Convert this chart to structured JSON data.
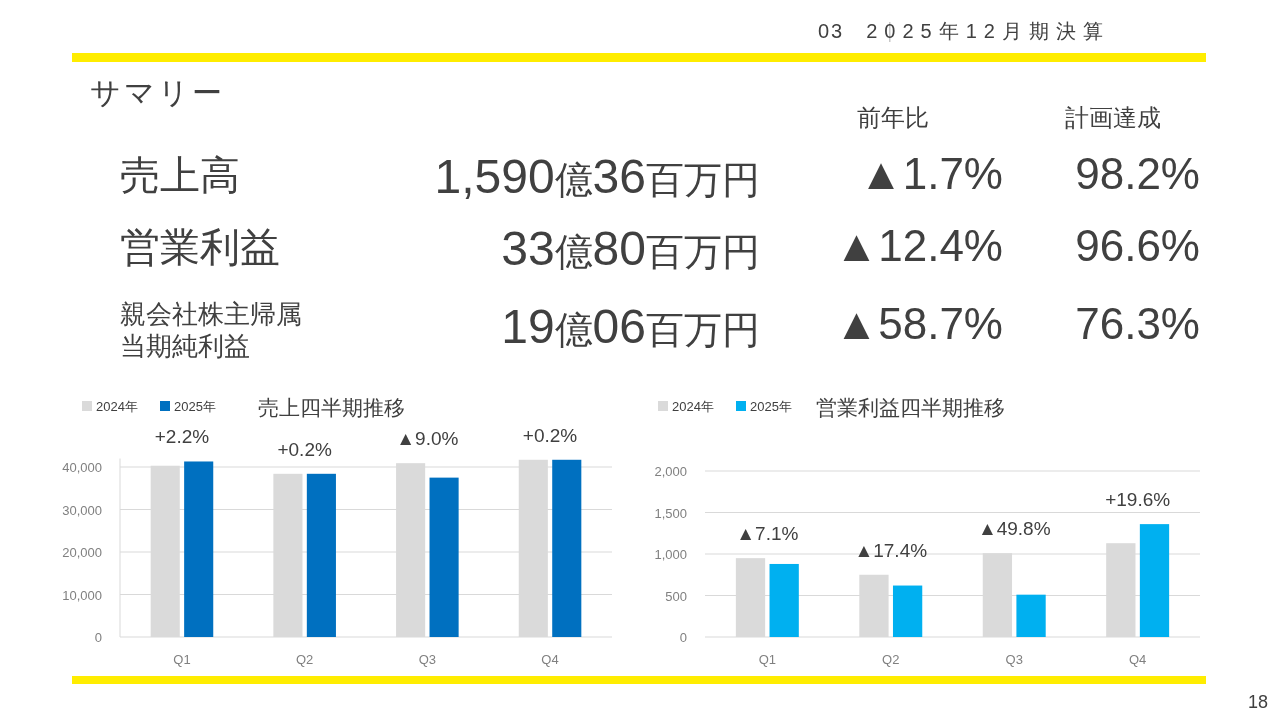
{
  "chart_data": [
    {
      "type": "other",
      "title": "サマリー",
      "annotations": [
        "03",
        "2025年12月期決算",
        "前年比",
        "計画達成",
        "売上高",
        "1,590億36百万円",
        "▲1.7%",
        "98.2%",
        "営業利益",
        "33億80百万円",
        "▲12.4%",
        "96.6%",
        "親会社株主帰属当期純利益",
        "19億06百万円",
        "▲58.7%",
        "76.3%",
        "18"
      ]
    },
    {
      "type": "bar",
      "title": "売上四半期推移",
      "categories": [
        "Q1",
        "Q2",
        "Q3",
        "Q4"
      ],
      "series": [
        {
          "name": "2024年",
          "color": "#dadada",
          "values": [
            40300,
            38400,
            40900,
            41700
          ]
        },
        {
          "name": "2025年",
          "color": "#0070c0",
          "values": [
            41300,
            38400,
            37500,
            41700
          ]
        }
      ],
      "ylim": [
        0,
        42000
      ],
      "yticks": [
        {
          "value": 0,
          "label": "0"
        },
        {
          "value": 10000,
          "label": "10,000"
        },
        {
          "value": 20000,
          "label": "20,000"
        },
        {
          "value": 30000,
          "label": "30,000"
        },
        {
          "value": 40000,
          "label": "40,000"
        }
      ],
      "grid": "y",
      "legend": "top left",
      "annotations": [
        "+2.2%",
        "+0.2%",
        "▲9.0%",
        "+0.2%"
      ]
    },
    {
      "type": "bar",
      "title": "営業利益四半期推移",
      "categories": [
        "Q1",
        "Q2",
        "Q3",
        "Q4"
      ],
      "series": [
        {
          "name": "2024年",
          "color": "#dadada",
          "values": [
            950,
            750,
            1010,
            1130
          ]
        },
        {
          "name": "2025年",
          "color": "#00b0f0",
          "values": [
            880,
            620,
            510,
            1360
          ]
        }
      ],
      "ylim": [
        0,
        2000
      ],
      "yticks": [
        {
          "value": 0,
          "label": "0"
        },
        {
          "value": 500,
          "label": "500"
        },
        {
          "value": 1000,
          "label": "1,000"
        },
        {
          "value": 1500,
          "label": "1,500"
        },
        {
          "value": 2000,
          "label": "2,000"
        }
      ],
      "grid": "y",
      "legend": "top left",
      "annotations": [
        "▲7.1%",
        "▲17.4%",
        "▲49.8%",
        "+19.6%"
      ]
    }
  ]
}
